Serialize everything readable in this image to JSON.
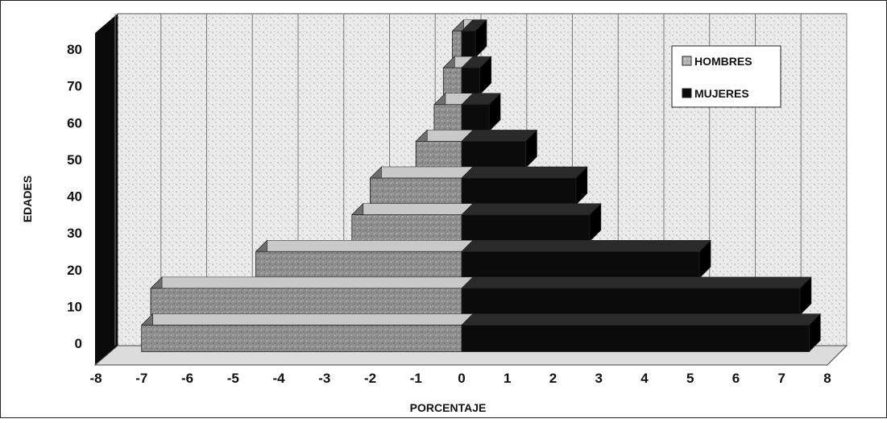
{
  "chart_data": {
    "type": "bar",
    "orientation": "horizontal",
    "style": "3d-population-pyramid",
    "xlabel": "PORCENTAJE",
    "ylabel": "EDADES",
    "xlim": [
      -8,
      8
    ],
    "ylim": [
      0,
      80
    ],
    "xticks": [
      "-8",
      "-7",
      "-6",
      "-5",
      "-4",
      "-3",
      "-2",
      "-1",
      "0",
      "1",
      "2",
      "3",
      "4",
      "5",
      "6",
      "7",
      "8"
    ],
    "yticks": [
      "0",
      "10",
      "20",
      "30",
      "40",
      "50",
      "60",
      "70",
      "80"
    ],
    "age_groups": [
      0,
      10,
      20,
      30,
      40,
      50,
      60,
      70,
      80
    ],
    "grid": "vertical",
    "legend_position": "top-right",
    "series": [
      {
        "name": "HOMBRES",
        "color": "#8e8e8e",
        "values": [
          -7.0,
          -6.8,
          -4.5,
          -2.4,
          -2.0,
          -1.0,
          -0.6,
          -0.4,
          -0.2
        ]
      },
      {
        "name": "MUJERES",
        "color": "#0a0a0a",
        "values": [
          7.6,
          7.4,
          5.2,
          2.8,
          2.5,
          1.4,
          0.6,
          0.4,
          0.3
        ]
      }
    ]
  }
}
